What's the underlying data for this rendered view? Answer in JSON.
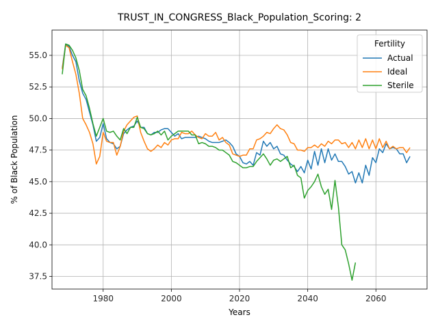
{
  "chart_data": {
    "type": "line",
    "title": "TRUST_IN_CONGRESS_Black_Population_Scoring: 2",
    "xlabel": "Years",
    "ylabel": "% of Black Population",
    "xlim": [
      1965,
      2075
    ],
    "ylim": [
      36.5,
      57.0
    ],
    "xticks": [
      1980,
      2000,
      2020,
      2040,
      2060
    ],
    "yticks": [
      37.5,
      40.0,
      42.5,
      45.0,
      47.5,
      50.0,
      52.5,
      55.0
    ],
    "grid": true,
    "legend": {
      "title": "Fertility",
      "placement": "top-right"
    },
    "series": [
      {
        "name": "Actual",
        "color": "#1f77b4",
        "points": [
          [
            1968,
            54.0
          ],
          [
            1969,
            55.9
          ],
          [
            1970,
            55.7
          ],
          [
            1971,
            55.0
          ],
          [
            1972,
            54.5
          ],
          [
            1973,
            53.0
          ],
          [
            1974,
            52.0
          ],
          [
            1975,
            51.5
          ],
          [
            1976,
            50.5
          ],
          [
            1977,
            49.5
          ],
          [
            1978,
            48.2
          ],
          [
            1979,
            48.5
          ],
          [
            1980,
            49.6
          ],
          [
            1981,
            48.4
          ],
          [
            1982,
            48.1
          ],
          [
            1983,
            48.0
          ],
          [
            1984,
            47.6
          ],
          [
            1985,
            47.8
          ],
          [
            1986,
            48.8
          ],
          [
            1987,
            49.1
          ],
          [
            1988,
            49.3
          ],
          [
            1989,
            49.4
          ],
          [
            1990,
            49.8
          ],
          [
            1991,
            49.3
          ],
          [
            1992,
            49.3
          ],
          [
            1993,
            48.8
          ],
          [
            1994,
            48.7
          ],
          [
            1995,
            48.9
          ],
          [
            1996,
            48.9
          ],
          [
            1997,
            49.1
          ],
          [
            1998,
            49.2
          ],
          [
            1999,
            49.2
          ],
          [
            2000,
            48.9
          ],
          [
            2001,
            48.6
          ],
          [
            2002,
            48.8
          ],
          [
            2003,
            48.4
          ],
          [
            2004,
            48.5
          ],
          [
            2005,
            48.5
          ],
          [
            2006,
            48.5
          ],
          [
            2007,
            48.5
          ],
          [
            2008,
            48.6
          ],
          [
            2009,
            48.5
          ],
          [
            2010,
            48.4
          ],
          [
            2011,
            48.2
          ],
          [
            2012,
            48.1
          ],
          [
            2013,
            48.1
          ],
          [
            2014,
            48.1
          ],
          [
            2015,
            48.2
          ],
          [
            2016,
            48.3
          ],
          [
            2017,
            48.1
          ],
          [
            2018,
            47.8
          ],
          [
            2019,
            47.2
          ],
          [
            2020,
            47.0
          ],
          [
            2021,
            46.5
          ],
          [
            2022,
            46.4
          ],
          [
            2023,
            46.6
          ],
          [
            2024,
            46.3
          ],
          [
            2025,
            47.3
          ],
          [
            2026,
            47.1
          ],
          [
            2027,
            48.2
          ],
          [
            2028,
            47.8
          ],
          [
            2029,
            48.1
          ],
          [
            2030,
            47.6
          ],
          [
            2031,
            47.8
          ],
          [
            2032,
            47.2
          ],
          [
            2033,
            47.1
          ],
          [
            2034,
            46.7
          ],
          [
            2035,
            46.4
          ],
          [
            2036,
            46.2
          ],
          [
            2037,
            45.8
          ],
          [
            2038,
            46.2
          ],
          [
            2039,
            45.7
          ],
          [
            2040,
            46.7
          ],
          [
            2041,
            46.0
          ],
          [
            2042,
            47.4
          ],
          [
            2043,
            46.3
          ],
          [
            2044,
            47.6
          ],
          [
            2045,
            46.5
          ],
          [
            2046,
            47.6
          ],
          [
            2047,
            46.7
          ],
          [
            2048,
            47.2
          ],
          [
            2049,
            46.6
          ],
          [
            2050,
            46.6
          ],
          [
            2051,
            46.2
          ],
          [
            2052,
            45.6
          ],
          [
            2053,
            45.8
          ],
          [
            2054,
            44.9
          ],
          [
            2055,
            45.7
          ],
          [
            2056,
            44.9
          ],
          [
            2057,
            46.3
          ],
          [
            2058,
            45.5
          ],
          [
            2059,
            46.9
          ],
          [
            2060,
            46.5
          ],
          [
            2061,
            47.6
          ],
          [
            2062,
            47.3
          ],
          [
            2063,
            48.0
          ],
          [
            2064,
            47.6
          ],
          [
            2065,
            47.7
          ],
          [
            2066,
            47.6
          ],
          [
            2067,
            47.2
          ],
          [
            2068,
            47.2
          ],
          [
            2069,
            46.5
          ],
          [
            2070,
            47.0
          ]
        ]
      },
      {
        "name": "Ideal",
        "color": "#ff7f0e",
        "points": [
          [
            1968,
            53.9
          ],
          [
            1969,
            55.8
          ],
          [
            1970,
            55.6
          ],
          [
            1971,
            54.5
          ],
          [
            1972,
            53.5
          ],
          [
            1973,
            52.0
          ],
          [
            1974,
            50.0
          ],
          [
            1975,
            49.5
          ],
          [
            1976,
            48.9
          ],
          [
            1977,
            48.0
          ],
          [
            1978,
            46.4
          ],
          [
            1979,
            47.0
          ],
          [
            1980,
            48.9
          ],
          [
            1981,
            48.2
          ],
          [
            1982,
            48.1
          ],
          [
            1983,
            48.1
          ],
          [
            1984,
            47.1
          ],
          [
            1985,
            47.8
          ],
          [
            1986,
            49.0
          ],
          [
            1987,
            49.5
          ],
          [
            1988,
            49.8
          ],
          [
            1989,
            50.1
          ],
          [
            1990,
            50.2
          ],
          [
            1991,
            48.9
          ],
          [
            1992,
            48.2
          ],
          [
            1993,
            47.6
          ],
          [
            1994,
            47.4
          ],
          [
            1995,
            47.6
          ],
          [
            1996,
            47.9
          ],
          [
            1997,
            47.7
          ],
          [
            1998,
            48.1
          ],
          [
            1999,
            47.9
          ],
          [
            2000,
            48.3
          ],
          [
            2001,
            48.4
          ],
          [
            2002,
            48.4
          ],
          [
            2003,
            48.9
          ],
          [
            2004,
            48.8
          ],
          [
            2005,
            48.8
          ],
          [
            2006,
            49.0
          ],
          [
            2007,
            48.7
          ],
          [
            2008,
            48.5
          ],
          [
            2009,
            48.4
          ],
          [
            2010,
            48.8
          ],
          [
            2011,
            48.6
          ],
          [
            2012,
            48.6
          ],
          [
            2013,
            48.9
          ],
          [
            2014,
            48.3
          ],
          [
            2015,
            48.5
          ],
          [
            2016,
            48.1
          ],
          [
            2017,
            47.9
          ],
          [
            2018,
            47.2
          ],
          [
            2019,
            47.1
          ],
          [
            2020,
            47.0
          ],
          [
            2021,
            47.1
          ],
          [
            2022,
            47.1
          ],
          [
            2023,
            47.6
          ],
          [
            2024,
            47.6
          ],
          [
            2025,
            48.3
          ],
          [
            2026,
            48.4
          ],
          [
            2027,
            48.6
          ],
          [
            2028,
            48.9
          ],
          [
            2029,
            48.8
          ],
          [
            2030,
            49.2
          ],
          [
            2031,
            49.5
          ],
          [
            2032,
            49.2
          ],
          [
            2033,
            49.1
          ],
          [
            2034,
            48.7
          ],
          [
            2035,
            48.1
          ],
          [
            2036,
            48.0
          ],
          [
            2037,
            47.5
          ],
          [
            2038,
            47.5
          ],
          [
            2039,
            47.4
          ],
          [
            2040,
            47.7
          ],
          [
            2041,
            47.7
          ],
          [
            2042,
            47.9
          ],
          [
            2043,
            47.7
          ],
          [
            2044,
            48.0
          ],
          [
            2045,
            47.8
          ],
          [
            2046,
            48.2
          ],
          [
            2047,
            48.0
          ],
          [
            2048,
            48.3
          ],
          [
            2049,
            48.3
          ],
          [
            2050,
            48.0
          ],
          [
            2051,
            48.1
          ],
          [
            2052,
            47.7
          ],
          [
            2053,
            48.1
          ],
          [
            2054,
            47.6
          ],
          [
            2055,
            48.3
          ],
          [
            2056,
            47.7
          ],
          [
            2057,
            48.4
          ],
          [
            2058,
            47.6
          ],
          [
            2059,
            48.3
          ],
          [
            2060,
            47.6
          ],
          [
            2061,
            48.4
          ],
          [
            2062,
            47.7
          ],
          [
            2063,
            48.2
          ],
          [
            2064,
            47.6
          ],
          [
            2065,
            47.8
          ],
          [
            2066,
            47.6
          ],
          [
            2067,
            47.7
          ],
          [
            2068,
            47.7
          ],
          [
            2069,
            47.3
          ],
          [
            2070,
            47.7
          ]
        ]
      },
      {
        "name": "Sterile",
        "color": "#2ca02c",
        "points": [
          [
            1968,
            53.5
          ],
          [
            1969,
            55.9
          ],
          [
            1970,
            55.8
          ],
          [
            1971,
            55.4
          ],
          [
            1972,
            54.8
          ],
          [
            1973,
            53.8
          ],
          [
            1974,
            52.3
          ],
          [
            1975,
            51.8
          ],
          [
            1976,
            50.8
          ],
          [
            1977,
            49.6
          ],
          [
            1978,
            48.6
          ],
          [
            1979,
            49.3
          ],
          [
            1980,
            50.0
          ],
          [
            1981,
            49.0
          ],
          [
            1982,
            48.9
          ],
          [
            1983,
            49.0
          ],
          [
            1984,
            48.6
          ],
          [
            1985,
            48.3
          ],
          [
            1986,
            49.2
          ],
          [
            1987,
            48.8
          ],
          [
            1988,
            49.3
          ],
          [
            1989,
            49.3
          ],
          [
            1990,
            50.1
          ],
          [
            1991,
            49.3
          ],
          [
            1992,
            49.2
          ],
          [
            1993,
            48.8
          ],
          [
            1994,
            48.7
          ],
          [
            1995,
            48.8
          ],
          [
            1996,
            49.0
          ],
          [
            1997,
            48.7
          ],
          [
            1998,
            49.0
          ],
          [
            1999,
            48.3
          ],
          [
            2000,
            48.6
          ],
          [
            2001,
            48.8
          ],
          [
            2002,
            49.0
          ],
          [
            2003,
            49.0
          ],
          [
            2004,
            49.0
          ],
          [
            2005,
            49.0
          ],
          [
            2006,
            48.7
          ],
          [
            2007,
            48.7
          ],
          [
            2008,
            48.0
          ],
          [
            2009,
            48.1
          ],
          [
            2010,
            48.0
          ],
          [
            2011,
            47.8
          ],
          [
            2012,
            47.8
          ],
          [
            2013,
            47.7
          ],
          [
            2014,
            47.5
          ],
          [
            2015,
            47.5
          ],
          [
            2016,
            47.3
          ],
          [
            2017,
            47.1
          ],
          [
            2018,
            46.6
          ],
          [
            2019,
            46.5
          ],
          [
            2020,
            46.3
          ],
          [
            2021,
            46.1
          ],
          [
            2022,
            46.1
          ],
          [
            2023,
            46.2
          ],
          [
            2024,
            46.2
          ],
          [
            2025,
            46.6
          ],
          [
            2026,
            46.9
          ],
          [
            2027,
            47.2
          ],
          [
            2028,
            46.8
          ],
          [
            2029,
            46.3
          ],
          [
            2030,
            46.7
          ],
          [
            2031,
            46.8
          ],
          [
            2032,
            46.6
          ],
          [
            2033,
            46.8
          ],
          [
            2034,
            47.0
          ],
          [
            2035,
            46.1
          ],
          [
            2036,
            46.3
          ],
          [
            2037,
            45.5
          ],
          [
            2038,
            45.3
          ],
          [
            2039,
            43.7
          ],
          [
            2040,
            44.3
          ],
          [
            2041,
            44.6
          ],
          [
            2042,
            45.0
          ],
          [
            2043,
            45.6
          ],
          [
            2044,
            44.6
          ],
          [
            2045,
            44.0
          ],
          [
            2046,
            44.4
          ],
          [
            2047,
            42.8
          ],
          [
            2048,
            45.1
          ],
          [
            2049,
            43.0
          ],
          [
            2050,
            40.0
          ],
          [
            2051,
            39.6
          ],
          [
            2052,
            38.5
          ],
          [
            2053,
            37.2
          ],
          [
            2054,
            38.6
          ]
        ]
      }
    ]
  }
}
